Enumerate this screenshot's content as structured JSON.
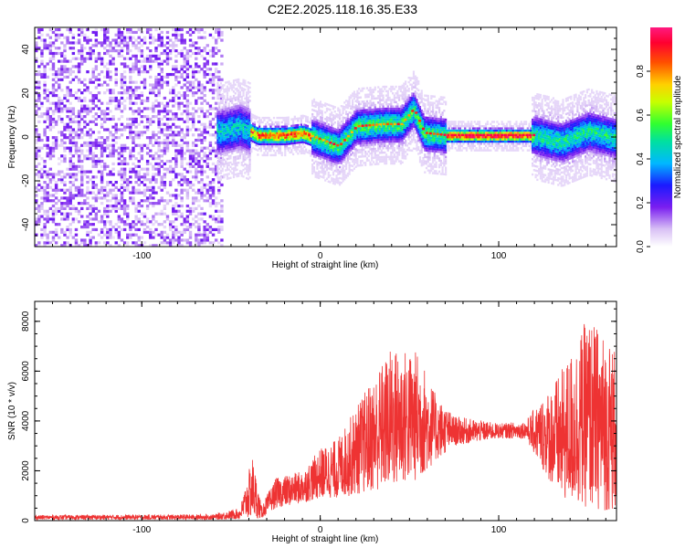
{
  "title": "C2E2.2025.118.16.35.E33",
  "chart_data": [
    {
      "type": "heatmap",
      "xlabel": "Height of straight line (km)",
      "ylabel": "Frequency (Hz)",
      "xlim": [
        -160,
        166
      ],
      "ylim": [
        -50,
        50
      ],
      "xticks": [
        -100,
        0,
        100
      ],
      "yticks": [
        -40,
        -20,
        0,
        20,
        40
      ],
      "colorbar": {
        "label": "Normalized spectral amplitude",
        "range": [
          0,
          1
        ],
        "ticks": [
          "0.0",
          "0.2",
          "0.4",
          "0.6",
          "0.8"
        ]
      },
      "ridge": {
        "description_points": [
          {
            "x": -55,
            "freq": 3
          },
          {
            "x": -45,
            "freq": 5
          },
          {
            "x": -35,
            "freq": 1
          },
          {
            "x": -20,
            "freq": 1
          },
          {
            "x": -10,
            "freq": 2
          },
          {
            "x": 0,
            "freq": -1
          },
          {
            "x": 10,
            "freq": -4
          },
          {
            "x": 20,
            "freq": 5
          },
          {
            "x": 35,
            "freq": 6
          },
          {
            "x": 45,
            "freq": 6
          },
          {
            "x": 52,
            "freq": 13
          },
          {
            "x": 58,
            "freq": 2
          },
          {
            "x": 70,
            "freq": 1
          },
          {
            "x": 120,
            "freq": 1
          },
          {
            "x": 135,
            "freq": -2
          },
          {
            "x": 150,
            "freq": 3
          },
          {
            "x": 165,
            "freq": 0
          }
        ]
      }
    },
    {
      "type": "line",
      "xlabel": "Height of straight line (km)",
      "ylabel": "SNR (10 * v/v)",
      "xlim": [
        -160,
        166
      ],
      "ylim": [
        0,
        8800
      ],
      "xticks": [
        -100,
        0,
        100
      ],
      "yticks": [
        0,
        2000,
        4000,
        6000,
        8000
      ],
      "color": "#ee3333",
      "envelope": [
        {
          "x": -160,
          "low": 40,
          "high": 220
        },
        {
          "x": -60,
          "low": 40,
          "high": 250
        },
        {
          "x": -45,
          "low": 60,
          "high": 500
        },
        {
          "x": -38,
          "low": 100,
          "high": 2600
        },
        {
          "x": -33,
          "low": 80,
          "high": 600
        },
        {
          "x": -25,
          "low": 500,
          "high": 1700
        },
        {
          "x": -10,
          "low": 700,
          "high": 2000
        },
        {
          "x": 0,
          "low": 900,
          "high": 2900
        },
        {
          "x": 10,
          "low": 900,
          "high": 3300
        },
        {
          "x": 25,
          "low": 1100,
          "high": 5200
        },
        {
          "x": 40,
          "low": 1300,
          "high": 7000
        },
        {
          "x": 55,
          "low": 1600,
          "high": 6800
        },
        {
          "x": 65,
          "low": 2400,
          "high": 5000
        },
        {
          "x": 75,
          "low": 3000,
          "high": 4200
        },
        {
          "x": 100,
          "low": 3300,
          "high": 3900
        },
        {
          "x": 115,
          "low": 3300,
          "high": 4000
        },
        {
          "x": 125,
          "low": 2000,
          "high": 5000
        },
        {
          "x": 135,
          "low": 800,
          "high": 6000
        },
        {
          "x": 150,
          "low": 500,
          "high": 8200
        },
        {
          "x": 166,
          "low": 300,
          "high": 7000
        }
      ]
    }
  ]
}
